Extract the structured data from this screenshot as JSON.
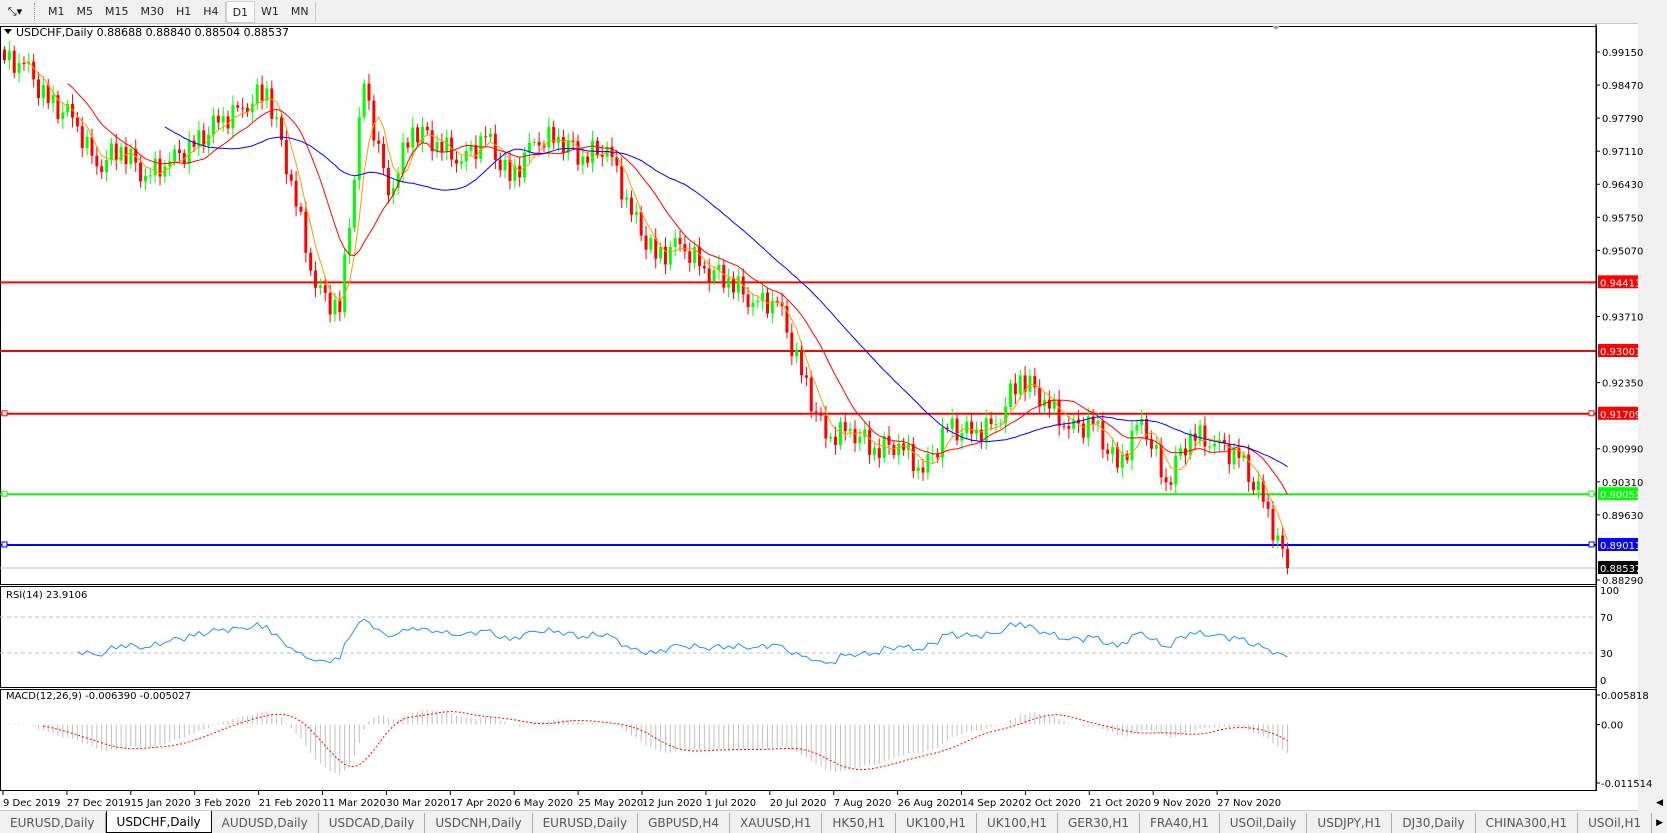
{
  "toolbar": {
    "tool_icon": "line-tool-icon",
    "timeframes": [
      "M1",
      "M5",
      "M15",
      "M30",
      "H1",
      "H4",
      "D1",
      "W1",
      "MN"
    ],
    "active": "D1"
  },
  "chart": {
    "header": "USDCHF,Daily  0.88688 0.88840 0.88504 0.88537",
    "symbol": "USDCHF",
    "timeframe": "Daily",
    "ohlc": {
      "open": 0.88688,
      "high": 0.8884,
      "low": 0.88504,
      "close": 0.88537
    },
    "price_axis": [
      "0.99150",
      "0.98470",
      "0.97790",
      "0.97110",
      "0.96430",
      "0.95750",
      "0.95070",
      "0.93710",
      "0.92350",
      "0.90990",
      "0.90310",
      "0.89630",
      "0.88290"
    ],
    "current_price": "0.88537",
    "hlines": [
      {
        "price": "0.94413",
        "color": "#ff0000"
      },
      {
        "price": "0.93001",
        "color": "#ff0000"
      },
      {
        "price": "0.91709",
        "color": "#ff0000"
      },
      {
        "price": "0.90055",
        "color": "#00ff00"
      },
      {
        "price": "0.89011",
        "color": "#0000ff"
      }
    ],
    "date_axis": [
      "9 Dec 2019",
      "27 Dec 2019",
      "15 Jan 2020",
      "3 Feb 2020",
      "21 Feb 2020",
      "11 Mar 2020",
      "30 Mar 2020",
      "17 Apr 2020",
      "6 May 2020",
      "25 May 2020",
      "12 Jun 2020",
      "1 Jul 2020",
      "20 Jul 2020",
      "7 Aug 2020",
      "26 Aug 2020",
      "14 Sep 2020",
      "2 Oct 2020",
      "21 Oct 2020",
      "9 Nov 2020",
      "27 Nov 2020"
    ],
    "colors": {
      "bull": "#00ff00",
      "bear": "#ff0000",
      "ma_fast": "#ff9900",
      "ma_mid": "#ff0000",
      "ma_slow": "#0000ff",
      "rsi": "#1e90ff",
      "macd_hist": "#c0c0c0",
      "macd_signal": "#ff0000"
    }
  },
  "rsi": {
    "label": "RSI(14) 23.9106",
    "axis": [
      "100",
      "70",
      "30",
      "0"
    ]
  },
  "macd": {
    "label": "MACD(12,26,9) -0.006390 -0.005027",
    "axis": [
      "0.005818",
      "0.00",
      "-0.011514"
    ]
  },
  "chart_data": {
    "type": "candlestick",
    "title": "USDCHF,Daily",
    "note_weekly_closes_approx": true,
    "x": [
      "2019-12-09",
      "2019-12-16",
      "2019-12-23",
      "2019-12-30",
      "2020-01-06",
      "2020-01-13",
      "2020-01-20",
      "2020-01-27",
      "2020-02-03",
      "2020-02-10",
      "2020-02-17",
      "2020-02-24",
      "2020-03-02",
      "2020-03-09",
      "2020-03-16",
      "2020-03-23",
      "2020-03-30",
      "2020-04-06",
      "2020-04-13",
      "2020-04-20",
      "2020-04-27",
      "2020-05-04",
      "2020-05-11",
      "2020-05-18",
      "2020-05-25",
      "2020-06-01",
      "2020-06-08",
      "2020-06-15",
      "2020-06-22",
      "2020-06-29",
      "2020-07-06",
      "2020-07-13",
      "2020-07-20",
      "2020-07-27",
      "2020-08-03",
      "2020-08-10",
      "2020-08-17",
      "2020-08-24",
      "2020-08-31",
      "2020-09-07",
      "2020-09-14",
      "2020-09-21",
      "2020-09-28",
      "2020-10-05",
      "2020-10-12",
      "2020-10-19",
      "2020-10-26",
      "2020-11-02",
      "2020-11-09",
      "2020-11-16",
      "2020-11-23",
      "2020-11-30",
      "2020-12-07"
    ],
    "close": [
      0.989,
      0.981,
      0.978,
      0.968,
      0.972,
      0.966,
      0.969,
      0.972,
      0.977,
      0.98,
      0.984,
      0.965,
      0.943,
      0.938,
      0.985,
      0.962,
      0.976,
      0.973,
      0.969,
      0.974,
      0.965,
      0.973,
      0.974,
      0.97,
      0.972,
      0.958,
      0.949,
      0.952,
      0.947,
      0.945,
      0.94,
      0.94,
      0.925,
      0.912,
      0.914,
      0.91,
      0.911,
      0.905,
      0.914,
      0.913,
      0.915,
      0.925,
      0.92,
      0.914,
      0.915,
      0.906,
      0.916,
      0.903,
      0.913,
      0.911,
      0.908,
      0.899,
      0.88537
    ],
    "ylim": [
      0.8829,
      0.9935
    ]
  },
  "tabs": [
    "EURUSD,Daily",
    "USDCHF,Daily",
    "AUDUSD,Daily",
    "USDCAD,Daily",
    "USDCNH,Daily",
    "EURUSD,Daily",
    "GBPUSD,H4",
    "XAUUSD,H1",
    "HK50,H1",
    "UK100,H1",
    "UK100,H1",
    "GER30,H1",
    "FRA40,H1",
    "USOil,Daily",
    "USDJPY,H1",
    "DJ30,Daily",
    "CHINA300,H1",
    "USOil,H1"
  ],
  "active_tab": "USDCHF,Daily"
}
